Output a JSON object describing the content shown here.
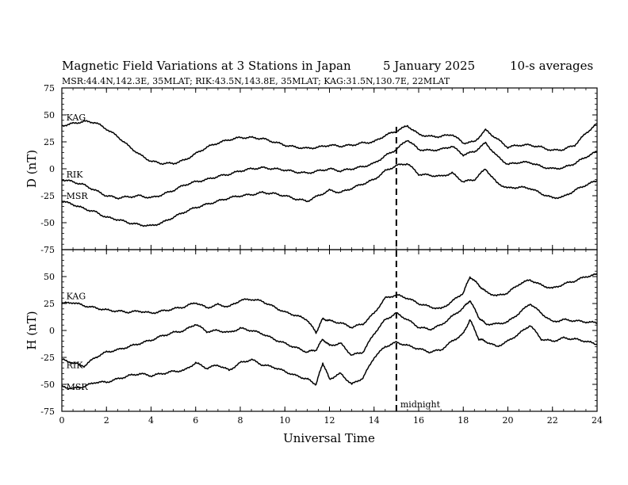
{
  "figure": {
    "title": "Magnetic Field Variations at 3 Stations in Japan",
    "date": "5   January  2025",
    "averaging": "10-s averages",
    "stations_line": "MSR:44.4N,142.3E, 35MLAT;  RIK:43.5N,143.8E, 35MLAT;  KAG:31.5N,130.7E, 22MLAT",
    "x_label": "Universal Time",
    "marker_label": "midnight",
    "marker_x": 15
  },
  "chart_data": [
    {
      "type": "line",
      "panel": "D",
      "ylabel": "D (nT)",
      "ylim": [
        -75,
        75
      ],
      "yticks": [
        75,
        50,
        25,
        0,
        -25,
        -50,
        -75
      ],
      "xlim": [
        0,
        24
      ],
      "xticks": [
        0,
        2,
        4,
        6,
        8,
        10,
        12,
        14,
        16,
        18,
        20,
        22,
        24
      ],
      "grid": false,
      "series": [
        {
          "name": "KAG",
          "label_at": [
            0.2,
            45
          ],
          "x": [
            0,
            0.5,
            1,
            1.5,
            2,
            2.5,
            3,
            3.5,
            4,
            4.5,
            5,
            5.5,
            6,
            6.5,
            7,
            7.5,
            8,
            8.5,
            9,
            9.5,
            10,
            10.5,
            11,
            11.5,
            12,
            12.5,
            13,
            13.5,
            14,
            14.5,
            15,
            15.5,
            16,
            16.5,
            17,
            17.5,
            18,
            18.5,
            19,
            19.5,
            20,
            20.5,
            21,
            21.5,
            22,
            22.5,
            23,
            23.5,
            24
          ],
          "y": [
            40,
            42,
            44,
            43,
            37,
            30,
            21,
            13,
            7,
            5,
            5,
            8,
            14,
            20,
            24,
            27,
            29,
            29,
            28,
            25,
            22,
            20,
            19,
            20,
            22,
            21,
            22,
            24,
            25,
            31,
            35,
            40,
            32,
            30,
            30,
            32,
            24,
            25,
            36,
            28,
            20,
            22,
            22,
            20,
            17,
            18,
            22,
            33,
            42
          ]
        },
        {
          "name": "RIK",
          "label_at": [
            0.2,
            -8
          ],
          "x": [
            0,
            0.5,
            1,
            1.5,
            2,
            2.5,
            3,
            3.5,
            4,
            4.5,
            5,
            5.5,
            6,
            6.5,
            7,
            7.5,
            8,
            8.5,
            9,
            9.5,
            10,
            10.5,
            11,
            11.5,
            12,
            12.5,
            13,
            13.5,
            14,
            14.5,
            15,
            15.5,
            16,
            16.5,
            17,
            17.5,
            18,
            18.5,
            19,
            19.5,
            20,
            20.5,
            21,
            21.5,
            22,
            22.5,
            23,
            23.5,
            24
          ],
          "y": [
            -10,
            -12,
            -15,
            -20,
            -25,
            -27,
            -26,
            -25,
            -27,
            -24,
            -20,
            -15,
            -12,
            -10,
            -7,
            -5,
            -2,
            0,
            1,
            0,
            -1,
            -3,
            -4,
            -2,
            0,
            -2,
            0,
            2,
            5,
            12,
            18,
            27,
            18,
            17,
            18,
            21,
            13,
            16,
            24,
            12,
            4,
            6,
            6,
            2,
            0,
            1,
            5,
            11,
            16
          ]
        },
        {
          "name": "MSR",
          "label_at": [
            0.2,
            -28
          ],
          "x": [
            0,
            0.5,
            1,
            1.5,
            2,
            2.5,
            3,
            3.5,
            4,
            4.5,
            5,
            5.5,
            6,
            6.5,
            7,
            7.5,
            8,
            8.5,
            9,
            9.5,
            10,
            10.5,
            11,
            11.5,
            12,
            12.5,
            13,
            13.5,
            14,
            14.5,
            15,
            15.5,
            16,
            16.5,
            17,
            17.5,
            18,
            18.5,
            19,
            19.5,
            20,
            20.5,
            21,
            21.5,
            22,
            22.5,
            23,
            23.5,
            24
          ],
          "y": [
            -30,
            -33,
            -37,
            -40,
            -45,
            -47,
            -50,
            -52,
            -53,
            -50,
            -45,
            -40,
            -36,
            -33,
            -30,
            -27,
            -25,
            -24,
            -22,
            -23,
            -25,
            -28,
            -30,
            -25,
            -20,
            -22,
            -18,
            -14,
            -10,
            -2,
            3,
            5,
            -5,
            -6,
            -7,
            -4,
            -12,
            -10,
            0,
            -13,
            -18,
            -17,
            -18,
            -23,
            -27,
            -26,
            -20,
            -15,
            -11
          ]
        }
      ]
    },
    {
      "type": "line",
      "panel": "H",
      "ylabel": "H (nT)",
      "ylim": [
        -75,
        75
      ],
      "yticks": [
        50,
        25,
        0,
        -25,
        -50,
        -75
      ],
      "xlim": [
        0,
        24
      ],
      "xticks": [
        0,
        2,
        4,
        6,
        8,
        10,
        12,
        14,
        16,
        18,
        20,
        22,
        24
      ],
      "xlabel": "Universal Time",
      "grid": false,
      "series": [
        {
          "name": "KAG",
          "label_at": [
            0.2,
            29
          ],
          "x": [
            0,
            0.5,
            1,
            1.5,
            2,
            2.5,
            3,
            3.5,
            4,
            4.5,
            5,
            5.5,
            6,
            6.5,
            7,
            7.5,
            8,
            8.5,
            9,
            9.5,
            10,
            10.5,
            11,
            11.4,
            11.7,
            12,
            12.5,
            13,
            13.5,
            14,
            14.5,
            15,
            15.5,
            16,
            16.5,
            17,
            17.5,
            18,
            18.3,
            18.7,
            19,
            19.5,
            20,
            20.5,
            21,
            21.5,
            22,
            22.5,
            23,
            23.5,
            24
          ],
          "y": [
            25,
            26,
            23,
            21,
            19,
            18,
            17,
            18,
            16,
            18,
            20,
            22,
            26,
            21,
            24,
            22,
            28,
            29,
            27,
            22,
            17,
            14,
            10,
            -2,
            11,
            9,
            7,
            3,
            6,
            16,
            30,
            33,
            30,
            25,
            22,
            20,
            27,
            35,
            50,
            42,
            36,
            32,
            35,
            43,
            47,
            42,
            39,
            43,
            46,
            50,
            52
          ]
        },
        {
          "name": "RIK",
          "label_at": [
            0.2,
            -35
          ],
          "x": [
            0,
            0.5,
            1,
            1.5,
            2,
            2.5,
            3,
            3.5,
            4,
            4.5,
            5,
            5.5,
            6,
            6.5,
            7,
            7.5,
            8,
            8.5,
            9,
            9.5,
            10,
            10.5,
            11,
            11.4,
            11.7,
            12,
            12.5,
            13,
            13.5,
            14,
            14.5,
            15,
            15.5,
            16,
            16.5,
            17,
            17.5,
            18,
            18.3,
            18.7,
            19,
            19.5,
            20,
            20.5,
            21,
            21.5,
            22,
            22.5,
            23,
            23.5,
            24
          ],
          "y": [
            -27,
            -30,
            -33,
            -25,
            -20,
            -18,
            -15,
            -12,
            -9,
            -5,
            -2,
            0,
            6,
            -1,
            0,
            -2,
            2,
            0,
            -3,
            -8,
            -12,
            -16,
            -20,
            -18,
            -8,
            -14,
            -12,
            -23,
            -20,
            -3,
            10,
            16,
            10,
            3,
            1,
            5,
            13,
            21,
            28,
            12,
            6,
            6,
            8,
            16,
            25,
            16,
            8,
            10,
            9,
            8,
            7
          ]
        },
        {
          "name": "MSR",
          "label_at": [
            0.2,
            -55
          ],
          "x": [
            0,
            0.5,
            1,
            1.5,
            2,
            2.5,
            3,
            3.5,
            4,
            4.5,
            5,
            5.5,
            6,
            6.5,
            7,
            7.5,
            8,
            8.5,
            9,
            9.5,
            10,
            10.5,
            11,
            11.4,
            11.7,
            12,
            12.5,
            13,
            13.5,
            14,
            14.5,
            15,
            15.5,
            16,
            16.5,
            17,
            17.5,
            18,
            18.3,
            18.7,
            19,
            19.5,
            20,
            20.5,
            21,
            21.5,
            22,
            22.5,
            23,
            23.5,
            24
          ],
          "y": [
            -52,
            -54,
            -52,
            -48,
            -48,
            -45,
            -42,
            -40,
            -42,
            -40,
            -38,
            -37,
            -30,
            -35,
            -32,
            -37,
            -30,
            -27,
            -32,
            -34,
            -38,
            -42,
            -45,
            -50,
            -30,
            -45,
            -40,
            -50,
            -44,
            -25,
            -15,
            -11,
            -14,
            -17,
            -20,
            -18,
            -10,
            -3,
            10,
            -8,
            -10,
            -15,
            -10,
            -3,
            5,
            -8,
            -10,
            -7,
            -8,
            -10,
            -13
          ]
        }
      ]
    }
  ]
}
